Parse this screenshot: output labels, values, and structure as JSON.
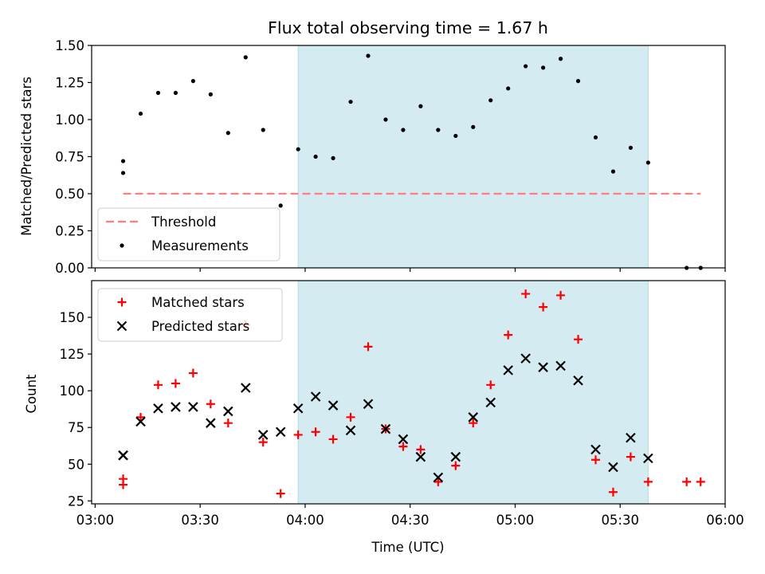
{
  "title": "Flux total observing time = 1.67 h",
  "chart_data": [
    {
      "type": "scatter",
      "panel": "top",
      "ylabel": "Matched/Predicted stars",
      "ylim": [
        0,
        1.5
      ],
      "yticks": [
        0,
        0.25,
        0.5,
        0.75,
        1.0,
        1.25,
        1.5
      ],
      "ytick_labels": [
        "0.00",
        "0.25",
        "0.50",
        "0.75",
        "1.00",
        "1.25",
        "1.50"
      ],
      "xlim": [
        "02:59",
        "06:00"
      ],
      "legend_placement": "lower-left",
      "shaded_span": {
        "start": "03:58",
        "end": "05:38",
        "color": "#add8e6"
      },
      "threshold": {
        "name": "Threshold",
        "value": 0.5,
        "x_start": "03:08",
        "x_end": "05:53",
        "color": "#ff7f7f"
      },
      "series": [
        {
          "name": "Measurements",
          "color": "#000000",
          "points": [
            [
              "03:08",
              0.64
            ],
            [
              "03:08",
              0.72
            ],
            [
              "03:13",
              1.04
            ],
            [
              "03:18",
              1.18
            ],
            [
              "03:23",
              1.18
            ],
            [
              "03:28",
              1.26
            ],
            [
              "03:33",
              1.17
            ],
            [
              "03:38",
              0.91
            ],
            [
              "03:43",
              1.42
            ],
            [
              "03:48",
              0.93
            ],
            [
              "03:53",
              0.42
            ],
            [
              "03:58",
              0.8
            ],
            [
              "04:03",
              0.75
            ],
            [
              "04:08",
              0.74
            ],
            [
              "04:13",
              1.12
            ],
            [
              "04:18",
              1.43
            ],
            [
              "04:23",
              1.0
            ],
            [
              "04:28",
              0.93
            ],
            [
              "04:33",
              1.09
            ],
            [
              "04:38",
              0.93
            ],
            [
              "04:43",
              0.89
            ],
            [
              "04:48",
              0.95
            ],
            [
              "04:53",
              1.13
            ],
            [
              "04:58",
              1.21
            ],
            [
              "05:03",
              1.36
            ],
            [
              "05:08",
              1.35
            ],
            [
              "05:13",
              1.41
            ],
            [
              "05:18",
              1.26
            ],
            [
              "05:23",
              0.88
            ],
            [
              "05:28",
              0.65
            ],
            [
              "05:33",
              0.81
            ],
            [
              "05:38",
              0.71
            ],
            [
              "05:49",
              0.0
            ],
            [
              "05:53",
              0.0
            ]
          ]
        }
      ]
    },
    {
      "type": "scatter",
      "panel": "bottom",
      "xlabel": "Time (UTC)",
      "ylabel": "Count",
      "ylim": [
        23,
        175
      ],
      "yticks": [
        25,
        50,
        75,
        100,
        125,
        150
      ],
      "ytick_labels": [
        "25",
        "50",
        "75",
        "100",
        "125",
        "150"
      ],
      "xlim": [
        "02:59",
        "06:00"
      ],
      "xticks": [
        "03:00",
        "03:30",
        "04:00",
        "04:30",
        "05:00",
        "05:30",
        "06:00"
      ],
      "legend_placement": "upper-left",
      "shaded_span": {
        "start": "03:58",
        "end": "05:38",
        "color": "#add8e6"
      },
      "series": [
        {
          "name": "Matched stars",
          "marker": "plus",
          "color": "#ff0000",
          "points": [
            [
              "03:08",
              36
            ],
            [
              "03:08",
              40
            ],
            [
              "03:13",
              82
            ],
            [
              "03:18",
              104
            ],
            [
              "03:23",
              105
            ],
            [
              "03:28",
              112
            ],
            [
              "03:33",
              91
            ],
            [
              "03:38",
              78
            ],
            [
              "03:43",
              145
            ],
            [
              "03:48",
              65
            ],
            [
              "03:53",
              30
            ],
            [
              "03:58",
              70
            ],
            [
              "04:03",
              72
            ],
            [
              "04:08",
              67
            ],
            [
              "04:13",
              82
            ],
            [
              "04:18",
              130
            ],
            [
              "04:23",
              74
            ],
            [
              "04:28",
              62
            ],
            [
              "04:33",
              60
            ],
            [
              "04:38",
              38
            ],
            [
              "04:43",
              49
            ],
            [
              "04:48",
              78
            ],
            [
              "04:53",
              104
            ],
            [
              "04:58",
              138
            ],
            [
              "05:03",
              166
            ],
            [
              "05:08",
              157
            ],
            [
              "05:13",
              165
            ],
            [
              "05:18",
              135
            ],
            [
              "05:23",
              53
            ],
            [
              "05:28",
              31
            ],
            [
              "05:33",
              55
            ],
            [
              "05:38",
              38
            ],
            [
              "05:49",
              38
            ],
            [
              "05:53",
              38
            ]
          ]
        },
        {
          "name": "Predicted stars",
          "marker": "x",
          "color": "#000000",
          "points": [
            [
              "03:08",
              56
            ],
            [
              "03:08",
              56
            ],
            [
              "03:13",
              79
            ],
            [
              "03:18",
              88
            ],
            [
              "03:23",
              89
            ],
            [
              "03:28",
              89
            ],
            [
              "03:33",
              78
            ],
            [
              "03:38",
              86
            ],
            [
              "03:43",
              102
            ],
            [
              "03:48",
              70
            ],
            [
              "03:53",
              72
            ],
            [
              "03:58",
              88
            ],
            [
              "04:03",
              96
            ],
            [
              "04:08",
              90
            ],
            [
              "04:13",
              73
            ],
            [
              "04:18",
              91
            ],
            [
              "04:23",
              74
            ],
            [
              "04:28",
              67
            ],
            [
              "04:33",
              55
            ],
            [
              "04:38",
              41
            ],
            [
              "04:43",
              55
            ],
            [
              "04:48",
              82
            ],
            [
              "04:53",
              92
            ],
            [
              "04:58",
              114
            ],
            [
              "05:03",
              122
            ],
            [
              "05:08",
              116
            ],
            [
              "05:13",
              117
            ],
            [
              "05:18",
              107
            ],
            [
              "05:23",
              60
            ],
            [
              "05:28",
              48
            ],
            [
              "05:33",
              68
            ],
            [
              "05:38",
              54
            ]
          ]
        }
      ]
    }
  ]
}
